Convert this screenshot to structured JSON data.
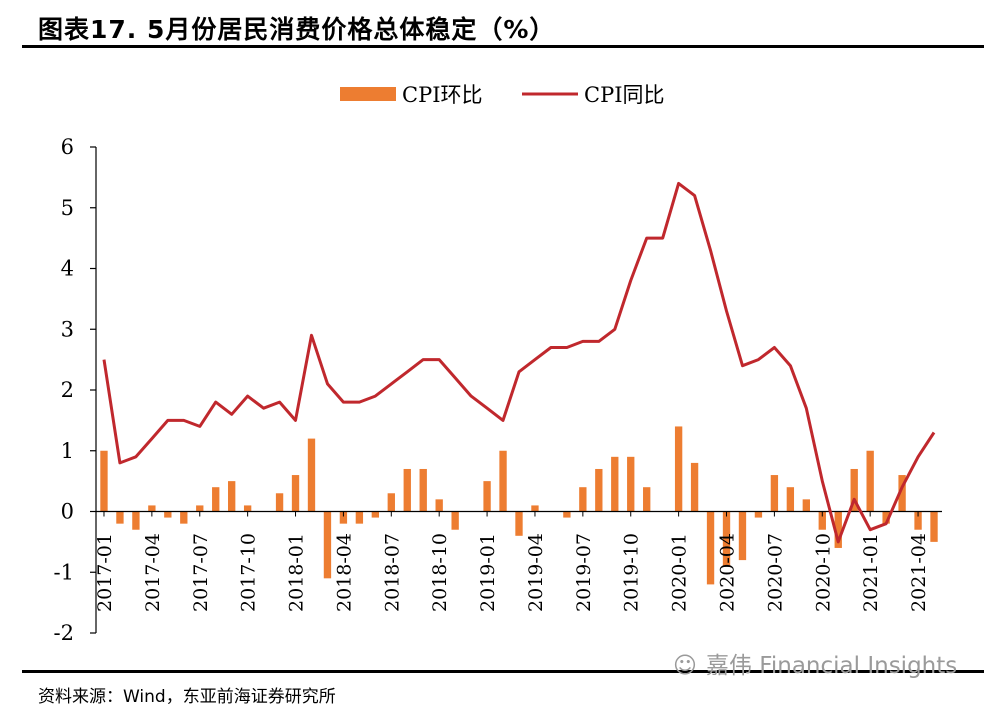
{
  "title": "图表17. 5月份居民消费价格总体稳定（%）",
  "source": "资料来源：Wind，东亚前海证券研究所",
  "watermark": "嘉伟 Financial Insights",
  "watermark_icon": "wechat-icon",
  "colors": {
    "bar": "#ED7D31",
    "line": "#C0282D",
    "axis": "#000000"
  },
  "chart_data": {
    "type": "bar+line",
    "title": "图表17. 5月份居民消费价格总体稳定（%）",
    "legend_position": "top-center",
    "grid": false,
    "ylim": [
      -2,
      6
    ],
    "yticks": [
      -2,
      -1,
      0,
      1,
      2,
      3,
      4,
      5,
      6
    ],
    "x": [
      "2017-01",
      "2017-02",
      "2017-03",
      "2017-04",
      "2017-05",
      "2017-06",
      "2017-07",
      "2017-08",
      "2017-09",
      "2017-10",
      "2017-11",
      "2017-12",
      "2018-01",
      "2018-02",
      "2018-03",
      "2018-04",
      "2018-05",
      "2018-06",
      "2018-07",
      "2018-08",
      "2018-09",
      "2018-10",
      "2018-11",
      "2018-12",
      "2019-01",
      "2019-02",
      "2019-03",
      "2019-04",
      "2019-05",
      "2019-06",
      "2019-07",
      "2019-08",
      "2019-09",
      "2019-10",
      "2019-11",
      "2019-12",
      "2020-01",
      "2020-02",
      "2020-03",
      "2020-04",
      "2020-05",
      "2020-06",
      "2020-07",
      "2020-08",
      "2020-09",
      "2020-10",
      "2020-11",
      "2020-12",
      "2021-01",
      "2021-02",
      "2021-03",
      "2021-04",
      "2021-05"
    ],
    "xtick_labels": [
      "2017-01",
      "2017-04",
      "2017-07",
      "2017-10",
      "2018-01",
      "2018-04",
      "2018-07",
      "2018-10",
      "2019-01",
      "2019-04",
      "2019-07",
      "2019-10",
      "2020-01",
      "2020-04",
      "2020-07",
      "2020-10",
      "2021-01",
      "2021-04"
    ],
    "series": [
      {
        "name": "CPI环比",
        "type": "bar",
        "values": [
          1.0,
          -0.2,
          -0.3,
          0.1,
          -0.1,
          -0.2,
          0.1,
          0.4,
          0.5,
          0.1,
          0.0,
          0.3,
          0.6,
          1.2,
          -1.1,
          -0.2,
          -0.2,
          -0.1,
          0.3,
          0.7,
          0.7,
          0.2,
          -0.3,
          0.0,
          0.5,
          1.0,
          -0.4,
          0.1,
          0.0,
          -0.1,
          0.4,
          0.7,
          0.9,
          0.9,
          0.4,
          0.0,
          1.4,
          0.8,
          -1.2,
          -0.9,
          -0.8,
          -0.1,
          0.6,
          0.4,
          0.2,
          -0.3,
          -0.6,
          0.7,
          1.0,
          -0.2,
          0.6,
          -0.3,
          -0.5
        ]
      },
      {
        "name": "CPI同比",
        "type": "line",
        "values": [
          2.5,
          0.8,
          0.9,
          1.2,
          1.5,
          1.5,
          1.4,
          1.8,
          1.6,
          1.9,
          1.7,
          1.8,
          1.5,
          2.9,
          2.1,
          1.8,
          1.8,
          1.9,
          2.1,
          2.3,
          2.5,
          2.5,
          2.2,
          1.9,
          1.7,
          1.5,
          2.3,
          2.5,
          2.7,
          2.7,
          2.8,
          2.8,
          3.0,
          3.8,
          4.5,
          4.5,
          5.4,
          5.2,
          4.3,
          3.3,
          2.4,
          2.5,
          2.7,
          2.4,
          1.7,
          0.5,
          -0.5,
          0.2,
          -0.3,
          -0.2,
          0.4,
          0.9,
          1.3
        ]
      }
    ]
  }
}
